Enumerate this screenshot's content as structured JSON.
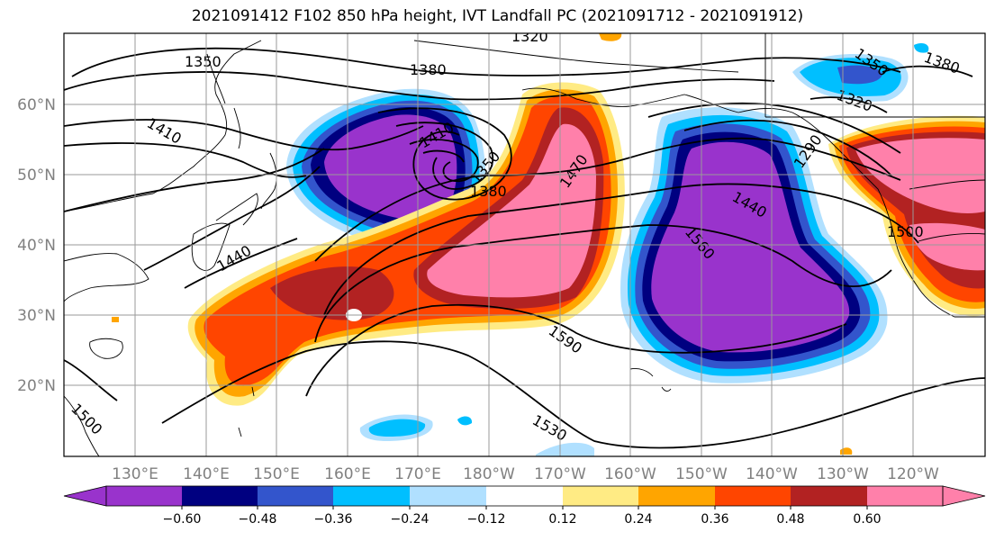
{
  "title": "2021091412 F102 850 hPa height, IVT Landfall PC (2021091712 - 2021091912)",
  "map": {
    "lon_ticks": [
      "130°E",
      "140°E",
      "150°E",
      "160°E",
      "170°E",
      "180°W",
      "170°W",
      "160°W",
      "150°W",
      "140°W",
      "130°W",
      "120°W"
    ],
    "lat_ticks": [
      "60°N",
      "50°N",
      "40°N",
      "30°N",
      "20°N"
    ],
    "grid": true
  },
  "contour_labels": [
    "1320",
    "1350",
    "1380",
    "1410",
    "1410",
    "1350",
    "1380",
    "1470",
    "1440",
    "1560",
    "1590",
    "1530",
    "1500",
    "1500",
    "1350",
    "1380",
    "1320",
    "1440",
    "1290"
  ],
  "colorbar": {
    "ticks": [
      "−0.60",
      "−0.48",
      "−0.36",
      "−0.24",
      "−0.12",
      "0.12",
      "0.24",
      "0.36",
      "0.48",
      "0.60"
    ],
    "colors": [
      "#9933cc",
      "#000080",
      "#3355cc",
      "#00bfff",
      "#b0e0ff",
      "#ffffff",
      "#ffeb84",
      "#ffa500",
      "#ff4500",
      "#b22222",
      "#ff80aa"
    ]
  },
  "palette": {
    "purple": "#9933cc",
    "navy": "#000080",
    "blue": "#3355cc",
    "sky": "#00bfff",
    "lightblue": "#b0e0ff",
    "yellow": "#ffeb84",
    "orange": "#ffa500",
    "redorange": "#ff4500",
    "darkred": "#b22222",
    "pink": "#ff80aa"
  }
}
